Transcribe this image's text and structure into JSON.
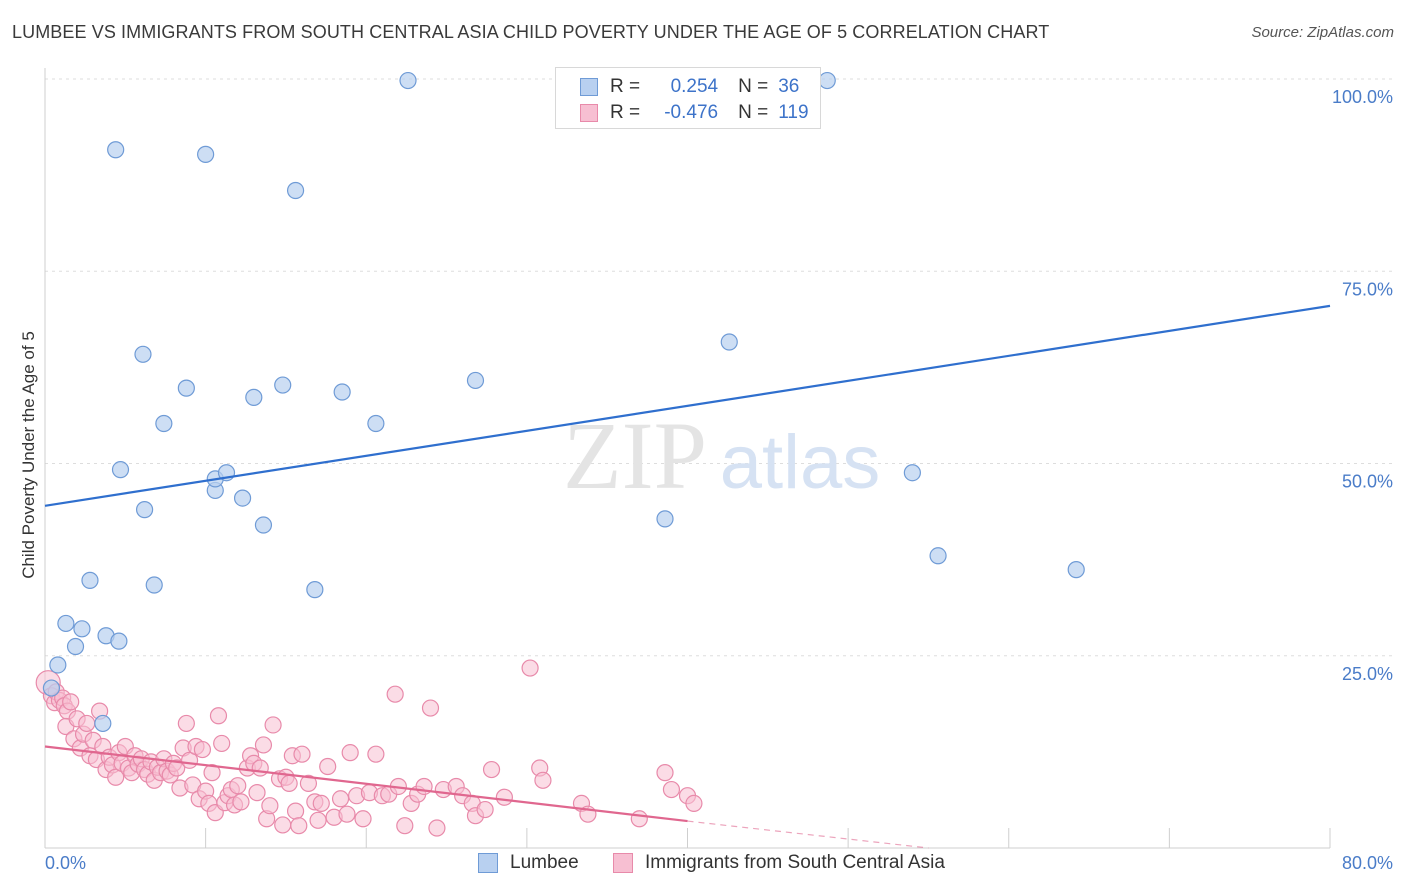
{
  "header": {
    "title": "LUMBEE VS IMMIGRANTS FROM SOUTH CENTRAL ASIA CHILD POVERTY UNDER THE AGE OF 5 CORRELATION CHART",
    "source": "Source: ZipAtlas.com"
  },
  "watermark": {
    "zip": "ZIP",
    "atlas": "atlas"
  },
  "colors": {
    "lumbee_fill": "#b8d0f0",
    "lumbee_stroke": "#6f9bd6",
    "lumbee_line": "#2f6fce",
    "immig_fill": "#f7bfd2",
    "immig_stroke": "#e88aaa",
    "immig_line": "#e0678f",
    "axis_tick": "#4a7cc8",
    "grid": "#dddddd"
  },
  "legend": {
    "rows": [
      {
        "r_label": "R =",
        "r_value": "0.254",
        "n_label": "N =",
        "n_value": "36"
      },
      {
        "r_label": "R =",
        "r_value": "-0.476",
        "n_label": "N =",
        "n_value": "119"
      }
    ]
  },
  "bottom_legend": {
    "lumbee": "Lumbee",
    "immig": "Immigrants from South Central Asia"
  },
  "chart_data": {
    "type": "scatter",
    "title": "LUMBEE VS IMMIGRANTS FROM SOUTH CENTRAL ASIA CHILD POVERTY UNDER THE AGE OF 5 CORRELATION CHART",
    "xlabel": "",
    "ylabel": "Child Poverty Under the Age of 5",
    "xlim": [
      0,
      80
    ],
    "ylim": [
      0,
      100
    ],
    "x_tick_labels": [
      "0.0%",
      "80.0%"
    ],
    "y_ticks": [
      25,
      50,
      75,
      100
    ],
    "y_tick_labels": [
      "25.0%",
      "50.0%",
      "75.0%",
      "100.0%"
    ],
    "series": [
      {
        "name": "Lumbee",
        "r": 0.254,
        "n": 36,
        "trend": {
          "x": [
            0,
            80
          ],
          "y": [
            44.5,
            70.5
          ],
          "style": "solid"
        },
        "points": [
          [
            0.8,
            23.8
          ],
          [
            1.3,
            29.2
          ],
          [
            1.9,
            26.2
          ],
          [
            2.3,
            28.5
          ],
          [
            2.8,
            34.8
          ],
          [
            3.6,
            16.2
          ],
          [
            3.8,
            27.6
          ],
          [
            4.6,
            26.9
          ],
          [
            4.4,
            90.8
          ],
          [
            4.7,
            49.2
          ],
          [
            6.2,
            44.0
          ],
          [
            6.1,
            64.2
          ],
          [
            6.8,
            34.2
          ],
          [
            7.4,
            55.2
          ],
          [
            8.8,
            59.8
          ],
          [
            10.0,
            90.2
          ],
          [
            10.6,
            46.5
          ],
          [
            10.6,
            48.0
          ],
          [
            11.3,
            48.8
          ],
          [
            12.3,
            45.5
          ],
          [
            13.0,
            58.6
          ],
          [
            13.6,
            42.0
          ],
          [
            14.8,
            60.2
          ],
          [
            15.6,
            85.5
          ],
          [
            16.8,
            33.6
          ],
          [
            18.5,
            59.3
          ],
          [
            20.6,
            55.2
          ],
          [
            22.6,
            99.8
          ],
          [
            26.8,
            60.8
          ],
          [
            38.6,
            42.8
          ],
          [
            42.6,
            65.8
          ],
          [
            48.7,
            99.8
          ],
          [
            54.0,
            48.8
          ],
          [
            55.6,
            38.0
          ],
          [
            64.2,
            36.2
          ],
          [
            0.4,
            20.8
          ]
        ]
      },
      {
        "name": "Immigrants from South Central Asia",
        "r": -0.476,
        "n": 119,
        "trend": {
          "x": [
            0,
            40,
            55
          ],
          "y": [
            13.2,
            3.5,
            0
          ],
          "style": "solid-then-dashed"
        },
        "points": [
          [
            0.2,
            21.5
          ],
          [
            0.4,
            19.8
          ],
          [
            0.6,
            18.9
          ],
          [
            0.7,
            20.3
          ],
          [
            0.9,
            19.2
          ],
          [
            1.1,
            19.5
          ],
          [
            1.2,
            18.5
          ],
          [
            1.4,
            17.8
          ],
          [
            1.6,
            19.0
          ],
          [
            1.3,
            15.8
          ],
          [
            1.8,
            14.2
          ],
          [
            2.0,
            16.8
          ],
          [
            2.2,
            13.0
          ],
          [
            2.4,
            14.8
          ],
          [
            2.6,
            16.2
          ],
          [
            2.8,
            12.0
          ],
          [
            3.0,
            14.0
          ],
          [
            3.2,
            11.5
          ],
          [
            3.4,
            17.8
          ],
          [
            3.6,
            13.2
          ],
          [
            3.8,
            10.2
          ],
          [
            4.0,
            11.8
          ],
          [
            4.2,
            10.8
          ],
          [
            4.4,
            9.2
          ],
          [
            4.6,
            12.4
          ],
          [
            4.8,
            11.0
          ],
          [
            5.0,
            13.2
          ],
          [
            5.2,
            10.4
          ],
          [
            5.4,
            9.8
          ],
          [
            5.6,
            12.0
          ],
          [
            5.8,
            10.9
          ],
          [
            6.0,
            11.6
          ],
          [
            6.2,
            10.2
          ],
          [
            6.4,
            9.6
          ],
          [
            6.6,
            11.2
          ],
          [
            6.8,
            8.8
          ],
          [
            7.0,
            10.5
          ],
          [
            7.2,
            9.8
          ],
          [
            7.4,
            11.6
          ],
          [
            7.6,
            10.0
          ],
          [
            7.8,
            9.5
          ],
          [
            8.0,
            11.0
          ],
          [
            8.2,
            10.4
          ],
          [
            8.4,
            7.8
          ],
          [
            8.6,
            13.0
          ],
          [
            8.8,
            16.2
          ],
          [
            9.0,
            11.4
          ],
          [
            9.2,
            8.2
          ],
          [
            9.4,
            13.2
          ],
          [
            9.6,
            6.4
          ],
          [
            9.8,
            12.8
          ],
          [
            10.0,
            7.4
          ],
          [
            10.2,
            5.8
          ],
          [
            10.4,
            9.8
          ],
          [
            10.6,
            4.6
          ],
          [
            10.8,
            17.2
          ],
          [
            11.0,
            13.6
          ],
          [
            11.2,
            5.9
          ],
          [
            11.4,
            6.8
          ],
          [
            11.6,
            7.6
          ],
          [
            11.8,
            5.6
          ],
          [
            12.0,
            8.1
          ],
          [
            12.2,
            6.0
          ],
          [
            12.6,
            10.4
          ],
          [
            12.8,
            12.0
          ],
          [
            13.0,
            11.0
          ],
          [
            13.2,
            7.2
          ],
          [
            13.4,
            10.4
          ],
          [
            13.6,
            13.4
          ],
          [
            13.8,
            3.8
          ],
          [
            14.0,
            5.5
          ],
          [
            14.2,
            16.0
          ],
          [
            14.6,
            9.0
          ],
          [
            14.8,
            3.0
          ],
          [
            15.0,
            9.2
          ],
          [
            15.2,
            8.4
          ],
          [
            15.4,
            12.0
          ],
          [
            15.6,
            4.8
          ],
          [
            15.8,
            2.9
          ],
          [
            16.0,
            12.2
          ],
          [
            16.4,
            8.4
          ],
          [
            16.8,
            6.0
          ],
          [
            17.0,
            3.6
          ],
          [
            17.2,
            5.8
          ],
          [
            17.6,
            10.6
          ],
          [
            18.0,
            4.0
          ],
          [
            18.4,
            6.4
          ],
          [
            18.8,
            4.4
          ],
          [
            19.0,
            12.4
          ],
          [
            19.4,
            6.8
          ],
          [
            19.8,
            3.8
          ],
          [
            20.2,
            7.2
          ],
          [
            20.6,
            12.2
          ],
          [
            21.0,
            6.8
          ],
          [
            21.4,
            7.0
          ],
          [
            21.8,
            20.0
          ],
          [
            22.0,
            8.0
          ],
          [
            22.4,
            2.9
          ],
          [
            22.8,
            5.8
          ],
          [
            23.2,
            7.0
          ],
          [
            23.6,
            8.0
          ],
          [
            24.0,
            18.2
          ],
          [
            24.4,
            2.6
          ],
          [
            24.8,
            7.6
          ],
          [
            25.6,
            8.0
          ],
          [
            26.0,
            6.8
          ],
          [
            26.6,
            5.8
          ],
          [
            26.8,
            4.2
          ],
          [
            27.4,
            5.0
          ],
          [
            27.8,
            10.2
          ],
          [
            28.6,
            6.6
          ],
          [
            30.2,
            23.4
          ],
          [
            30.8,
            10.4
          ],
          [
            31.0,
            8.8
          ],
          [
            33.4,
            5.8
          ],
          [
            33.8,
            4.4
          ],
          [
            37.0,
            3.8
          ],
          [
            38.6,
            9.8
          ],
          [
            39.0,
            7.6
          ],
          [
            40.0,
            6.8
          ],
          [
            40.4,
            5.8
          ]
        ]
      }
    ]
  }
}
